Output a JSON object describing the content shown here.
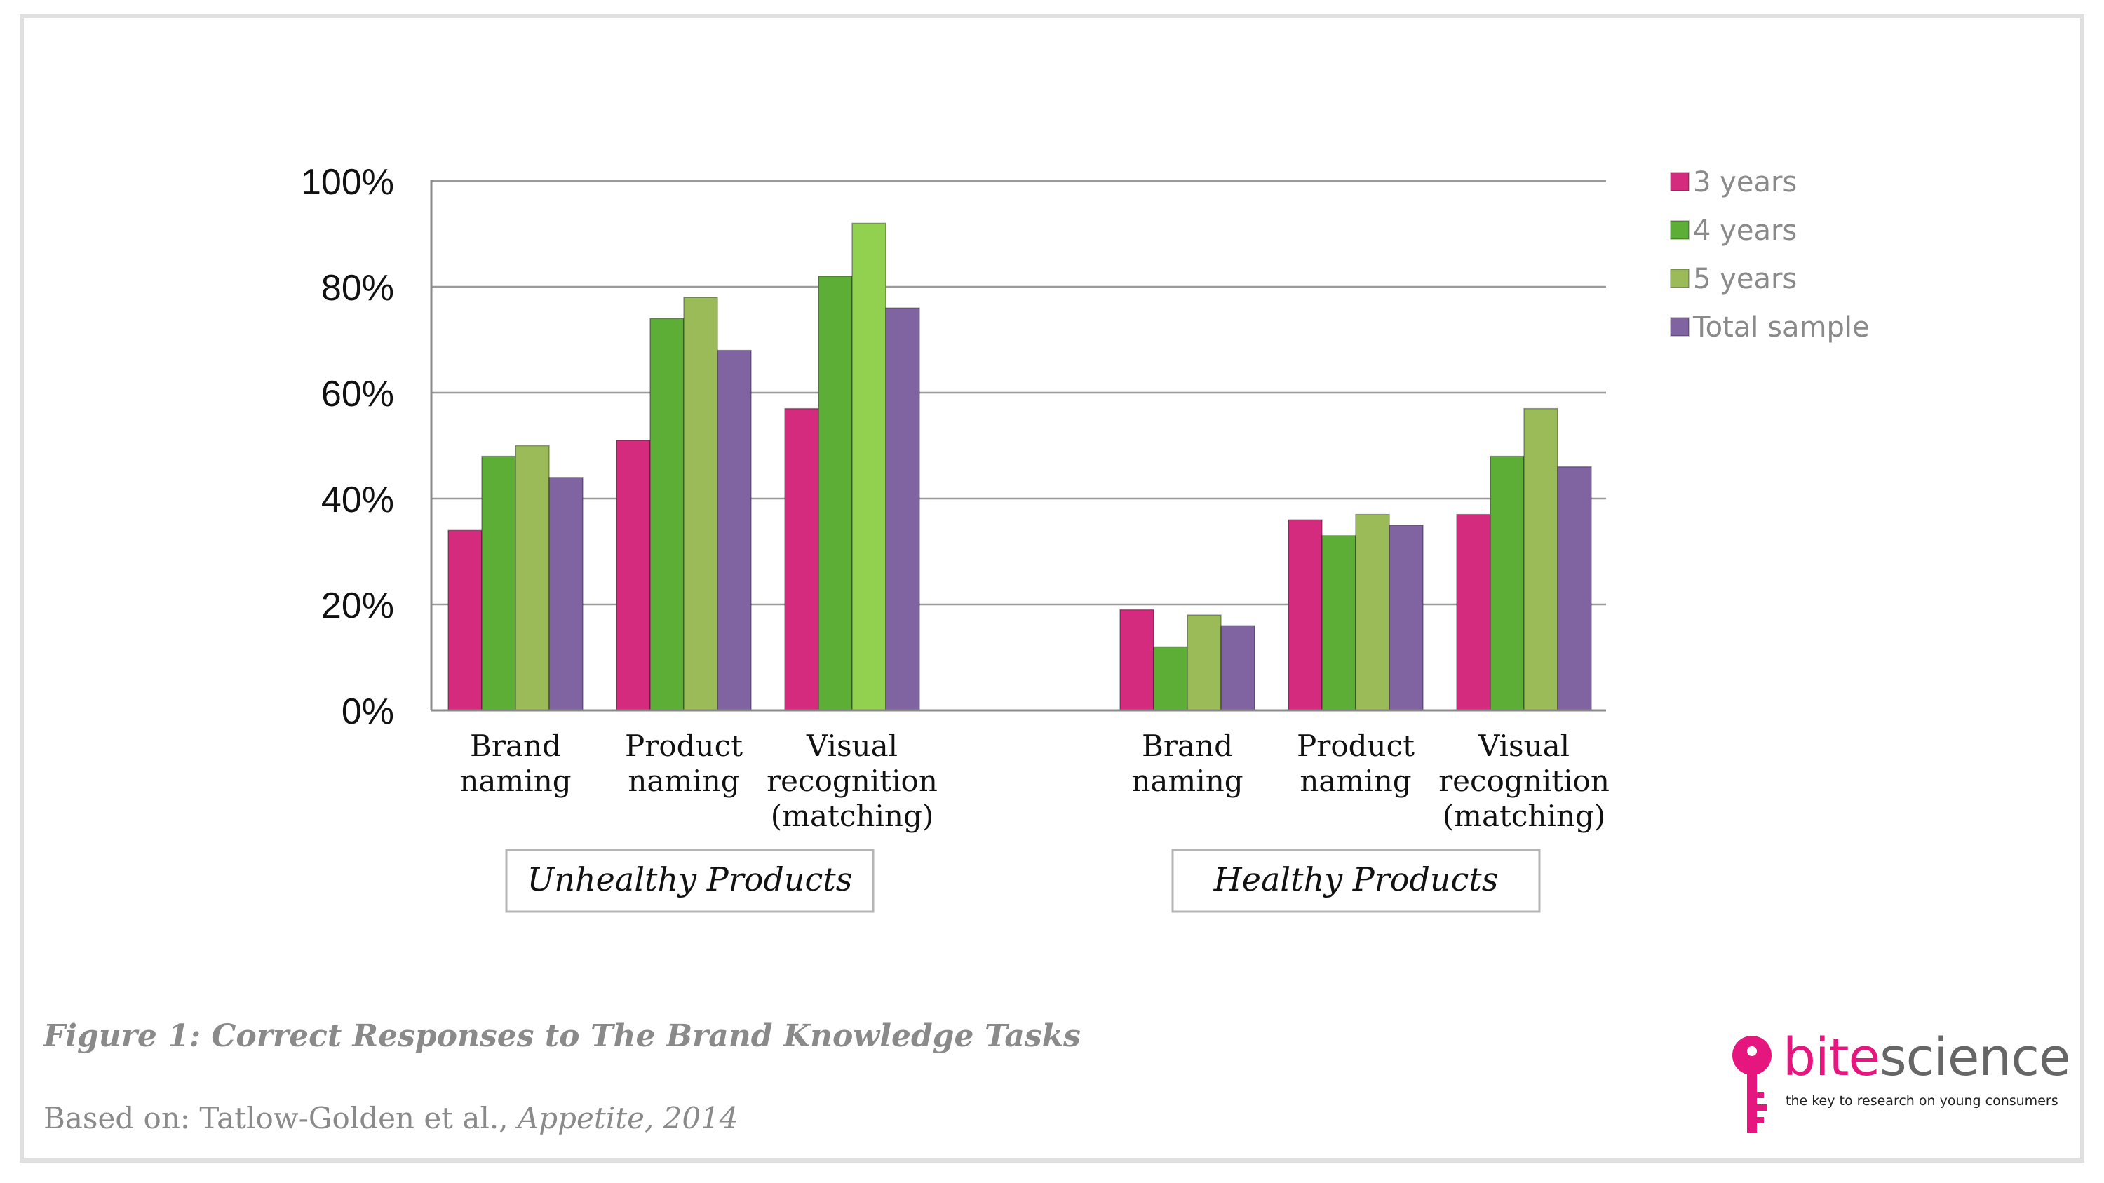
{
  "chart_data": {
    "type": "bar",
    "categories": [
      "Brand naming",
      "Product naming",
      "Visual recognition (matching)",
      "Brand naming",
      "Product naming",
      "Visual recognition (matching)"
    ],
    "category_lines": [
      [
        "Brand",
        "naming"
      ],
      [
        "Product",
        "naming"
      ],
      [
        "Visual",
        "recognition",
        "(matching)"
      ],
      [
        "Brand",
        "naming"
      ],
      [
        "Product",
        "naming"
      ],
      [
        "Visual",
        "recognition",
        "(matching)"
      ]
    ],
    "groups": [
      {
        "label": "Unhealthy Products",
        "categories": [
          0,
          1,
          2
        ]
      },
      {
        "label": "Healthy Products",
        "categories": [
          3,
          4,
          5
        ]
      }
    ],
    "series": [
      {
        "name": "3 years",
        "color": "#d42b7f",
        "values": [
          34,
          51,
          57,
          19,
          36,
          37
        ]
      },
      {
        "name": "4 years",
        "color": "#5dae36",
        "values": [
          48,
          74,
          82,
          12,
          33,
          48
        ]
      },
      {
        "name": "5 years",
        "color": "#9bbb59",
        "values": [
          50,
          78,
          92,
          18,
          37,
          57
        ]
      },
      {
        "name": "Total sample",
        "color": "#8064a2",
        "values": [
          44,
          68,
          76,
          16,
          35,
          46
        ]
      }
    ],
    "highlight": {
      "series": 2,
      "category": 2,
      "color": "#92d050"
    },
    "ylim": [
      0,
      100
    ],
    "yticks": [
      "0%",
      "20%",
      "40%",
      "60%",
      "80%",
      "100%"
    ],
    "grid": true,
    "legend_position": "right"
  },
  "caption": {
    "title": "Figure 1: Correct Responses to The Brand Knowledge Tasks",
    "source_prefix": "Based on: Tatlow-Golden et al.,",
    "source_journal": "Appetite, 2014"
  },
  "logo": {
    "name_part1": "bite",
    "name_part2": "science",
    "tagline": "the key to research on young consumers",
    "colors": {
      "pink": "#e5177f",
      "grey": "#666666"
    },
    "icon": "key-icon"
  }
}
